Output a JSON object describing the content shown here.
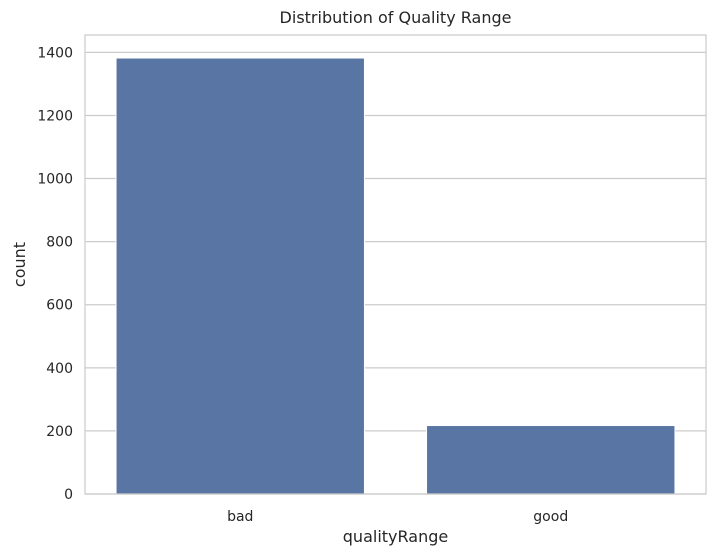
{
  "chart_data": {
    "type": "bar",
    "title": "Distribution of Quality Range",
    "xlabel": "qualityRange",
    "ylabel": "count",
    "categories": [
      "bad",
      "good"
    ],
    "values": [
      1382,
      217
    ],
    "ylim": [
      0,
      1455
    ],
    "yticks": [
      0,
      200,
      400,
      600,
      800,
      1000,
      1200,
      1400
    ],
    "ytick_labels": [
      "0",
      "200",
      "400",
      "600",
      "800",
      "1000",
      "1200",
      "1400"
    ],
    "grid": "horizontal",
    "bar_color": "#5975a4",
    "grid_color": "#cccccc",
    "background": "#ffffff"
  }
}
